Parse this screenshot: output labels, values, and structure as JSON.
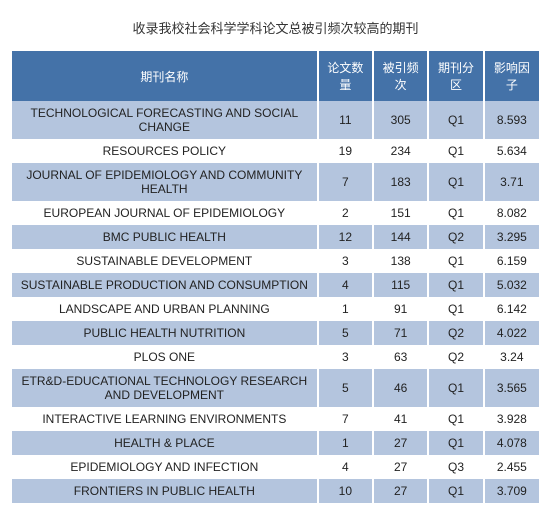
{
  "title": "收录我校社会科学学科论文总被引频次较高的期刊",
  "colors": {
    "header_bg": "#4472a8",
    "header_fg": "#ffffff",
    "row_odd_bg": "#b4c5de",
    "row_even_bg": "#ffffff",
    "page_bg": "#ffffff",
    "text": "#222222"
  },
  "columns": [
    {
      "key": "name",
      "label": "期刊名称"
    },
    {
      "key": "papers",
      "label": "论文数量"
    },
    {
      "key": "cites",
      "label": "被引频次"
    },
    {
      "key": "zone",
      "label": "期刊分区"
    },
    {
      "key": "impact",
      "label": "影响因子"
    }
  ],
  "rows": [
    {
      "name": "TECHNOLOGICAL FORECASTING AND SOCIAL CHANGE",
      "papers": "11",
      "cites": "305",
      "zone": "Q1",
      "impact": "8.593"
    },
    {
      "name": "RESOURCES POLICY",
      "papers": "19",
      "cites": "234",
      "zone": "Q1",
      "impact": "5.634"
    },
    {
      "name": "JOURNAL OF EPIDEMIOLOGY AND COMMUNITY HEALTH",
      "papers": "7",
      "cites": "183",
      "zone": "Q1",
      "impact": "3.71"
    },
    {
      "name": "EUROPEAN JOURNAL OF EPIDEMIOLOGY",
      "papers": "2",
      "cites": "151",
      "zone": "Q1",
      "impact": "8.082"
    },
    {
      "name": "BMC PUBLIC HEALTH",
      "papers": "12",
      "cites": "144",
      "zone": "Q2",
      "impact": "3.295"
    },
    {
      "name": "SUSTAINABLE DEVELOPMENT",
      "papers": "3",
      "cites": "138",
      "zone": "Q1",
      "impact": "6.159"
    },
    {
      "name": "SUSTAINABLE PRODUCTION AND CONSUMPTION",
      "papers": "4",
      "cites": "115",
      "zone": "Q1",
      "impact": "5.032"
    },
    {
      "name": "LANDSCAPE AND URBAN PLANNING",
      "papers": "1",
      "cites": "91",
      "zone": "Q1",
      "impact": "6.142"
    },
    {
      "name": "PUBLIC HEALTH NUTRITION",
      "papers": "5",
      "cites": "71",
      "zone": "Q2",
      "impact": "4.022"
    },
    {
      "name": "PLOS ONE",
      "papers": "3",
      "cites": "63",
      "zone": "Q2",
      "impact": "3.24"
    },
    {
      "name": "ETR&D-EDUCATIONAL TECHNOLOGY RESEARCH AND DEVELOPMENT",
      "papers": "5",
      "cites": "46",
      "zone": "Q1",
      "impact": "3.565"
    },
    {
      "name": "INTERACTIVE LEARNING ENVIRONMENTS",
      "papers": "7",
      "cites": "41",
      "zone": "Q1",
      "impact": "3.928"
    },
    {
      "name": "HEALTH & PLACE",
      "papers": "1",
      "cites": "27",
      "zone": "Q1",
      "impact": "4.078"
    },
    {
      "name": "EPIDEMIOLOGY AND INFECTION",
      "papers": "4",
      "cites": "27",
      "zone": "Q3",
      "impact": "2.455"
    },
    {
      "name": "FRONTIERS IN PUBLIC HEALTH",
      "papers": "10",
      "cites": "27",
      "zone": "Q1",
      "impact": "3.709"
    }
  ]
}
